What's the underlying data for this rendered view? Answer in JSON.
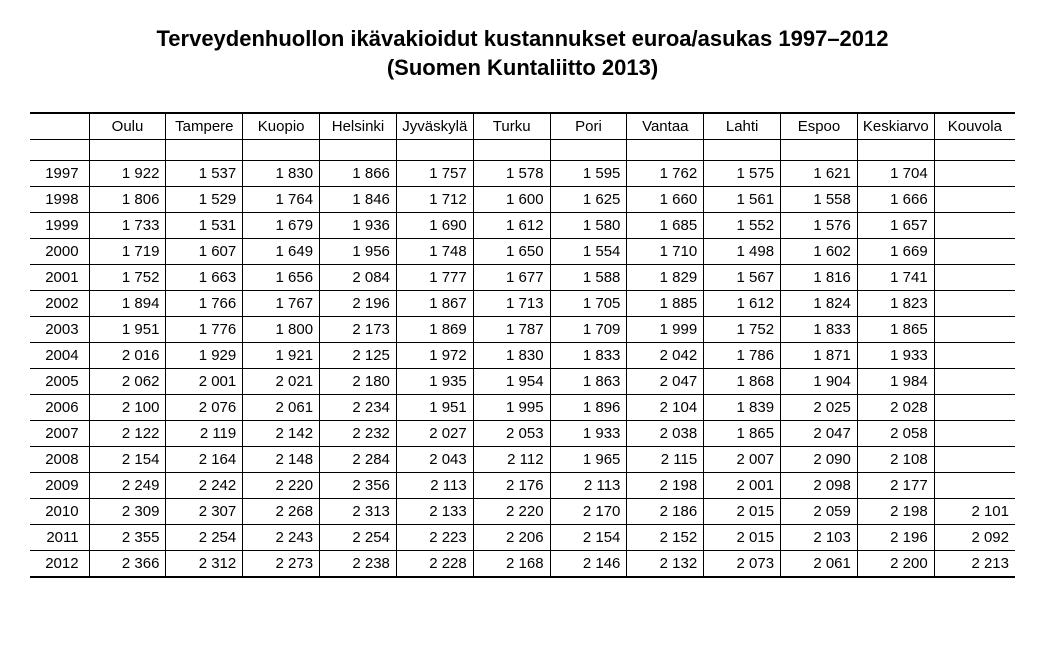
{
  "title_line1": "Terveydenhuollon ikävakioidut kustannukset euroa/asukas 1997–2012",
  "title_line2": "(Suomen Kuntaliitto 2013)",
  "table": {
    "type": "table",
    "columns": [
      "",
      "Oulu",
      "Tampere",
      "Kuopio",
      "Helsinki",
      "Jyväskylä",
      "Turku",
      "Pori",
      "Vantaa",
      "Lahti",
      "Espoo",
      "Keskiarvo",
      "Kouvola"
    ],
    "col_widths_pct": [
      6,
      7.8,
      7.8,
      7.8,
      7.8,
      7.8,
      7.8,
      7.8,
      7.8,
      7.8,
      7.8,
      7.8,
      8.2
    ],
    "years": [
      "1997",
      "1998",
      "1999",
      "2000",
      "2001",
      "2002",
      "2003",
      "2004",
      "2005",
      "2006",
      "2007",
      "2008",
      "2009",
      "2010",
      "2011",
      "2012"
    ],
    "rows": [
      [
        "1 922",
        "1 537",
        "1 830",
        "1 866",
        "1 757",
        "1 578",
        "1 595",
        "1 762",
        "1 575",
        "1 621",
        "1 704",
        ""
      ],
      [
        "1 806",
        "1 529",
        "1 764",
        "1 846",
        "1 712",
        "1 600",
        "1 625",
        "1 660",
        "1 561",
        "1 558",
        "1 666",
        ""
      ],
      [
        "1 733",
        "1 531",
        "1 679",
        "1 936",
        "1 690",
        "1 612",
        "1 580",
        "1 685",
        "1 552",
        "1 576",
        "1 657",
        ""
      ],
      [
        "1 719",
        "1 607",
        "1 649",
        "1 956",
        "1 748",
        "1 650",
        "1 554",
        "1 710",
        "1 498",
        "1 602",
        "1 669",
        ""
      ],
      [
        "1 752",
        "1 663",
        "1 656",
        "2 084",
        "1 777",
        "1 677",
        "1 588",
        "1 829",
        "1 567",
        "1 816",
        "1 741",
        ""
      ],
      [
        "1 894",
        "1 766",
        "1 767",
        "2 196",
        "1 867",
        "1 713",
        "1 705",
        "1 885",
        "1 612",
        "1 824",
        "1 823",
        ""
      ],
      [
        "1 951",
        "1 776",
        "1 800",
        "2 173",
        "1 869",
        "1 787",
        "1 709",
        "1 999",
        "1 752",
        "1 833",
        "1 865",
        ""
      ],
      [
        "2 016",
        "1 929",
        "1 921",
        "2 125",
        "1 972",
        "1 830",
        "1 833",
        "2 042",
        "1 786",
        "1 871",
        "1 933",
        ""
      ],
      [
        "2 062",
        "2 001",
        "2 021",
        "2 180",
        "1 935",
        "1 954",
        "1 863",
        "2 047",
        "1 868",
        "1 904",
        "1 984",
        ""
      ],
      [
        "2 100",
        "2 076",
        "2 061",
        "2 234",
        "1 951",
        "1 995",
        "1 896",
        "2 104",
        "1 839",
        "2 025",
        "2 028",
        ""
      ],
      [
        "2 122",
        "2 119",
        "2 142",
        "2 232",
        "2 027",
        "2 053",
        "1 933",
        "2 038",
        "1 865",
        "2 047",
        "2 058",
        ""
      ],
      [
        "2 154",
        "2 164",
        "2 148",
        "2 284",
        "2 043",
        "2 112",
        "1 965",
        "2 115",
        "2 007",
        "2 090",
        "2 108",
        ""
      ],
      [
        "2 249",
        "2 242",
        "2 220",
        "2 356",
        "2 113",
        "2 176",
        "2 113",
        "2 198",
        "2 001",
        "2 098",
        "2 177",
        ""
      ],
      [
        "2 309",
        "2 307",
        "2 268",
        "2 313",
        "2 133",
        "2 220",
        "2 170",
        "2 186",
        "2 015",
        "2 059",
        "2 198",
        "2 101"
      ],
      [
        "2 355",
        "2 254",
        "2 243",
        "2 254",
        "2 223",
        "2 206",
        "2 154",
        "2 152",
        "2 015",
        "2 103",
        "2 196",
        "2 092"
      ],
      [
        "2 366",
        "2 312",
        "2 273",
        "2 238",
        "2 228",
        "2 168",
        "2 146",
        "2 132",
        "2 073",
        "2 061",
        "2 200",
        "2 213"
      ]
    ],
    "header_fontsize": 15,
    "cell_fontsize": 15,
    "border_color": "#000000",
    "background_color": "#ffffff"
  }
}
